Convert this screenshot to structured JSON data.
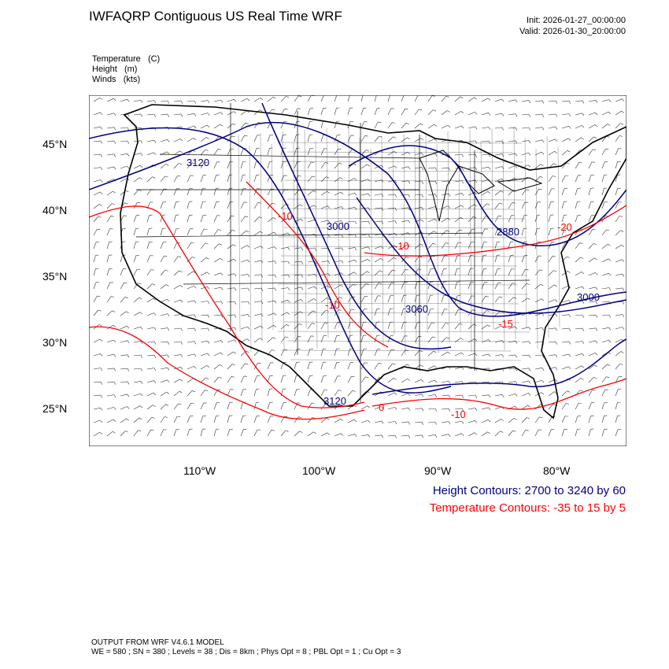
{
  "header": {
    "title": "IWFAQRP Contiguous US Real Time WRF",
    "init": "Init: 2026-01-27_00:00:00",
    "valid": "Valid: 2026-01-30_20:00:00"
  },
  "fields": [
    {
      "name": "Temperature",
      "unit": "(C)"
    },
    {
      "name": "Height",
      "unit": "(m)"
    },
    {
      "name": "Winds",
      "unit": "(kts)"
    }
  ],
  "map": {
    "lat_labels": [
      "45°N",
      "40°N",
      "35°N",
      "30°N",
      "25°N"
    ],
    "lon_labels": [
      "110°W",
      "100°W",
      "90°W",
      "80°W"
    ],
    "height_contour_labels": [
      "3120",
      "3000",
      "2880",
      "3000",
      "3060",
      "3120"
    ],
    "temperature_contour_labels": [
      "-10",
      "-10",
      "-10",
      "-15",
      "-20",
      "-10",
      "0"
    ]
  },
  "legend": {
    "height": "Height Contours: 2700 to 3240 by 60",
    "temperature": "Temperature Contours: -35 to 15 by 5",
    "height_color": "#000080",
    "temperature_color": "#ff0000"
  },
  "footer": {
    "line1": "OUTPUT FROM WRF V4.6.1 MODEL",
    "line2": "WE = 580 ; SN = 380 ; Levels = 38 ; Dis = 8km ; Phys Opt = 8 ; PBL Opt = 1 ; Cu Opt = 3"
  }
}
